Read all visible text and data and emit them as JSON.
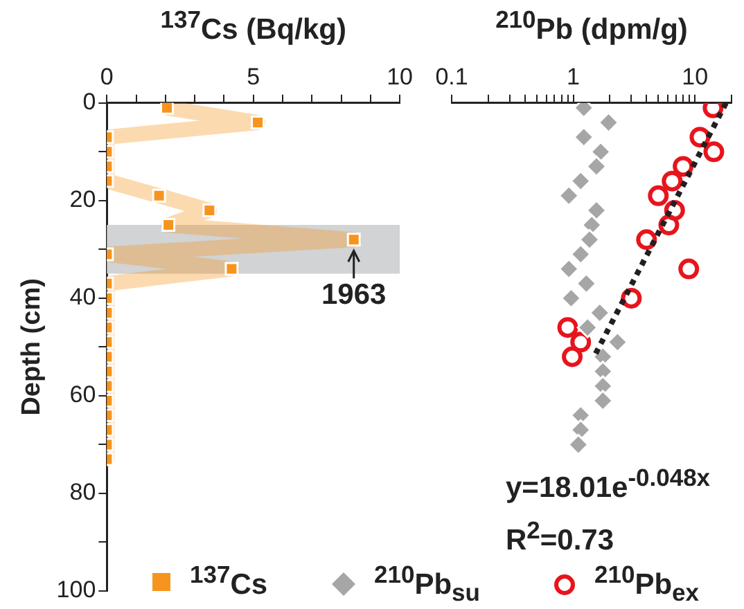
{
  "chart_data": [
    {
      "type": "line",
      "xlabel": "$^{137}$Cs (Bq/kg)",
      "ylabel": "Depth (cm)",
      "xlim": [
        0,
        10
      ],
      "xticks": [
        0,
        {
          "value": 1,
          "label": null
        },
        {
          "value": 2,
          "label": null
        },
        {
          "value": 3,
          "label": null
        },
        {
          "value": 4,
          "label": null
        },
        5,
        {
          "value": 6,
          "label": null
        },
        {
          "value": 7,
          "label": null
        },
        {
          "value": 8,
          "label": null
        },
        {
          "value": 9,
          "label": null
        },
        10
      ],
      "ylim": [
        100,
        0
      ],
      "yticks": [
        0,
        {
          "value": 10,
          "label": null
        },
        20,
        {
          "value": 30,
          "label": null
        },
        40,
        {
          "value": 50,
          "label": null
        },
        60,
        {
          "value": 70,
          "label": null
        },
        80,
        {
          "value": 90,
          "label": null
        },
        100
      ],
      "marker": "square",
      "legend": "bottom",
      "series": [
        {
          "name": "$^{137}$Cs",
          "color": "#f7941d",
          "x": [
            2.05,
            5.15,
            0,
            0,
            0,
            0,
            1.78,
            3.5,
            2.1,
            8.43,
            0,
            4.26,
            0,
            0,
            0,
            0,
            0,
            0,
            0,
            0,
            0,
            0,
            0,
            0,
            0
          ],
          "values": [
            1,
            4,
            7,
            10,
            13,
            16,
            19,
            22,
            25,
            28,
            31,
            34,
            37,
            40,
            43,
            46,
            49,
            52,
            55,
            58,
            61,
            64,
            67,
            70,
            73
          ]
        }
      ],
      "bands": [
        {
          "axis": "y",
          "from": 25,
          "to": 35,
          "color": "#d1d3d4"
        }
      ],
      "annotations": [
        {
          "text": "1963",
          "x": 8.43,
          "y": 28
        }
      ]
    },
    {
      "type": "scatter",
      "xlabel": "$^{210}$Pb (dpm/g)",
      "log": "x",
      "xlim": [
        0.1,
        20
      ],
      "xticks": [
        0.1,
        {
          "value": 0.2,
          "label": null
        },
        {
          "value": 0.3,
          "label": null
        },
        {
          "value": 0.4,
          "label": null
        },
        {
          "value": 0.5,
          "label": null
        },
        {
          "value": 0.6,
          "label": null
        },
        {
          "value": 0.7,
          "label": null
        },
        {
          "value": 0.8,
          "label": null
        },
        {
          "value": 0.9,
          "label": null
        },
        1,
        {
          "value": 2,
          "label": null
        },
        {
          "value": 3,
          "label": null
        },
        {
          "value": 4,
          "label": null
        },
        {
          "value": 5,
          "label": null
        },
        {
          "value": 6,
          "label": null
        },
        {
          "value": 7,
          "label": null
        },
        {
          "value": 8,
          "label": null
        },
        {
          "value": 9,
          "label": null
        },
        10,
        {
          "value": 20,
          "label": null
        }
      ],
      "ylim": [
        100,
        0
      ],
      "tick_labels": "x",
      "legend": "bottom",
      "series": [
        {
          "name": "$^{210}$Pb$_{su}$",
          "color": "#a6a6a6",
          "marker": "diamond",
          "x": [
            1.22,
            1.95,
            1.22,
            1.68,
            1.55,
            1.15,
            0.92,
            1.55,
            1.42,
            1.36,
            1.15,
            0.92,
            1.28,
            0.96,
            1.65,
            1.31,
            2.31,
            1.75,
            1.75,
            1.75,
            1.75,
            1.15,
            1.15,
            1.1
          ],
          "values": [
            1,
            4,
            7,
            10,
            13,
            16,
            19,
            22,
            25,
            28,
            31,
            34,
            37,
            40,
            43,
            46,
            49,
            52,
            55,
            58,
            61,
            64,
            67,
            70
          ]
        },
        {
          "name": "$^{210}$Pb$_{ex}$",
          "color": "#e8141c",
          "marker": "circle",
          "x": [
            14.1,
            11.0,
            14.3,
            8.0,
            6.5,
            5.0,
            6.8,
            6.1,
            4.0,
            8.9,
            3.0,
            0.9,
            1.15,
            0.98
          ],
          "values": [
            1,
            7,
            10,
            13,
            16,
            19,
            22,
            25,
            28,
            34,
            40,
            46,
            49,
            52
          ]
        },
        {
          "type": "line",
          "color": "#231f20",
          "line_style": "dotted",
          "x": [
            18.01,
            1.48
          ],
          "values": [
            0,
            52
          ]
        }
      ],
      "annotations": [
        "y=18.01e$^{-0.048x}$",
        "R$^{2}$=0.73"
      ]
    }
  ]
}
